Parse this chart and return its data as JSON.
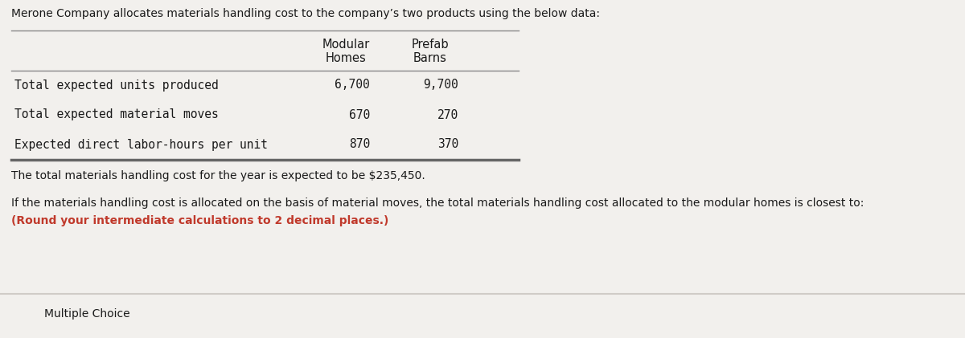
{
  "title_text": "Merone Company allocates materials handling cost to the company’s two products using the below data:",
  "col_header1_line1": "Modular",
  "col_header1_line2": "Homes",
  "col_header2_line1": "Prefab",
  "col_header2_line2": "Barns",
  "row_labels": [
    "Total expected units produced",
    "Total expected material moves",
    "Expected direct labor-hours per unit"
  ],
  "table_data": [
    [
      "6,700",
      "9,700"
    ],
    [
      "670",
      "270"
    ],
    [
      "870",
      "370"
    ]
  ],
  "paragraph1": "The total materials handling cost for the year is expected to be $235,450.",
  "paragraph2": "If the materials handling cost is allocated on the basis of material moves, the total materials handling cost allocated to the modular homes is closest to:",
  "paragraph3": "(Round your intermediate calculations to 2 decimal places.)",
  "footer": "Multiple Choice",
  "bg_color": "#f2f0ed",
  "table_header_bg": "#c9c5bf",
  "footer_bg": "#e8e5e0",
  "footer_border": "#d0ccc7",
  "text_color": "#1a1a1a",
  "highlight_color": "#c0392b",
  "title_fontsize": 10.0,
  "body_fontsize": 10.0,
  "table_header_fontsize": 10.5,
  "mono_fontsize": 10.5,
  "footer_fontsize": 10.0
}
